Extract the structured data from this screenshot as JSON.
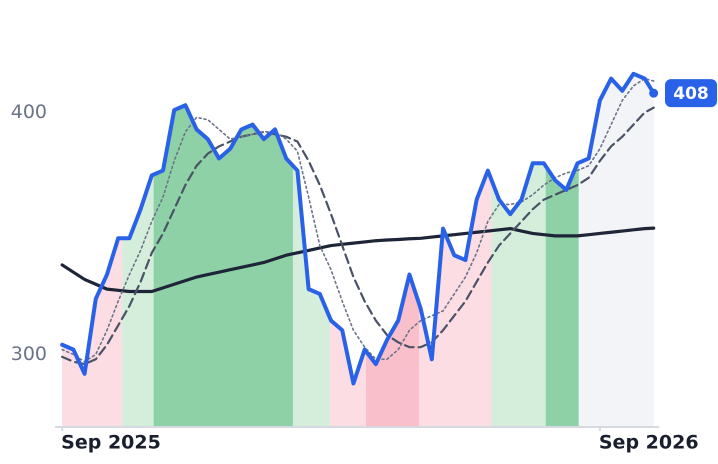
{
  "chart_data": {
    "type": "line",
    "x": [
      0,
      0.25,
      0.5,
      0.75,
      1,
      1.25,
      1.5,
      1.75,
      2,
      2.25,
      2.5,
      2.75,
      3,
      3.25,
      3.5,
      3.75,
      4,
      4.25,
      4.5,
      4.75,
      5,
      5.25,
      5.5,
      5.75,
      6,
      6.25,
      6.5,
      6.75,
      7,
      7.25,
      7.5,
      7.75,
      8,
      8.25,
      8.5,
      8.75,
      9,
      9.25,
      9.5,
      9.75,
      10,
      10.25,
      10.5,
      10.75,
      11,
      11.25,
      11.5,
      11.75,
      12,
      12.25,
      12.5,
      12.75,
      13,
      13.2
    ],
    "series": [
      {
        "color": "#2962e8",
        "style": "solid",
        "width": 4,
        "values": [
          304,
          302,
          292,
          323,
          333,
          348,
          348,
          360,
          374,
          376,
          401,
          403,
          393,
          389,
          381,
          385,
          393,
          395,
          389,
          393,
          381,
          376,
          327,
          325,
          314,
          310,
          288,
          302,
          296,
          306,
          314,
          333,
          319,
          298,
          352,
          341,
          339,
          364,
          376,
          364,
          358,
          364,
          379,
          379,
          372,
          368,
          379,
          381,
          405,
          414,
          409,
          416,
          414,
          408
        ]
      },
      {
        "color": "#6b7488",
        "style": "dotted",
        "width": 1.6,
        "values": [
          302,
          300,
          297,
          300,
          310,
          322,
          333,
          343,
          355,
          365,
          380,
          392,
          398,
          397,
          393,
          389,
          390,
          391,
          392,
          392,
          389,
          384,
          365,
          345,
          335,
          322,
          310,
          303,
          298,
          298,
          302,
          310,
          314,
          316,
          318,
          325,
          332,
          342,
          355,
          362,
          362,
          363,
          366,
          370,
          373,
          375,
          376,
          378,
          385,
          395,
          405,
          411,
          414,
          413
        ]
      },
      {
        "color": "#4a5366",
        "style": "dashed",
        "width": 2.2,
        "values": [
          299,
          297,
          296,
          298,
          304,
          312,
          320,
          330,
          342,
          350,
          360,
          370,
          378,
          383,
          386,
          388,
          390,
          391,
          392,
          391,
          390,
          388,
          380,
          370,
          358,
          345,
          332,
          322,
          314,
          308,
          305,
          303,
          303,
          305,
          310,
          316,
          322,
          330,
          338,
          345,
          350,
          355,
          360,
          364,
          366,
          368,
          370,
          373,
          380,
          386,
          390,
          395,
          400,
          402
        ]
      },
      {
        "color": "#1e2538",
        "style": "solid",
        "width": 3.2,
        "values": [
          337,
          334,
          331,
          329,
          327,
          326.5,
          326,
          326,
          326,
          327.5,
          329,
          330.5,
          332,
          333,
          334,
          335,
          336,
          337,
          338,
          339.5,
          341,
          342,
          343,
          344,
          345,
          345.5,
          346,
          346.5,
          347,
          347.3,
          347.5,
          347.8,
          348,
          348.5,
          349,
          349.5,
          350,
          350.5,
          351,
          351.5,
          352,
          351,
          350,
          349.5,
          349,
          349,
          349,
          349.5,
          350,
          350.5,
          351,
          351.5,
          352,
          352.2
        ]
      }
    ],
    "bands": [
      {
        "start": -0.16,
        "end": 1.34,
        "color": "#fcdde3"
      },
      {
        "start": 1.34,
        "end": 2.04,
        "color": "#d4eedb"
      },
      {
        "start": 2.04,
        "end": 5.15,
        "color": "#8fd1a6"
      },
      {
        "start": 5.15,
        "end": 5.98,
        "color": "#d4eedb"
      },
      {
        "start": 5.98,
        "end": 6.78,
        "color": "#fcdde3"
      },
      {
        "start": 6.78,
        "end": 7.97,
        "color": "#f9c0cb"
      },
      {
        "start": 7.97,
        "end": 9.58,
        "color": "#fcdde3"
      },
      {
        "start": 9.58,
        "end": 10.79,
        "color": "#d4eedb"
      },
      {
        "start": 10.79,
        "end": 11.53,
        "color": "#8fd1a6"
      },
      {
        "start": 11.53,
        "end": 13.23,
        "color": "#f3f4f7"
      }
    ],
    "xlim": [
      -0.16,
      13.23
    ],
    "ylim": [
      270,
      446.5
    ],
    "xticks": [
      {
        "value": 0,
        "label": "Sep 2025"
      },
      {
        "value": 12,
        "label": "Sep 2026"
      }
    ],
    "yticks": [
      300,
      400
    ]
  }
}
